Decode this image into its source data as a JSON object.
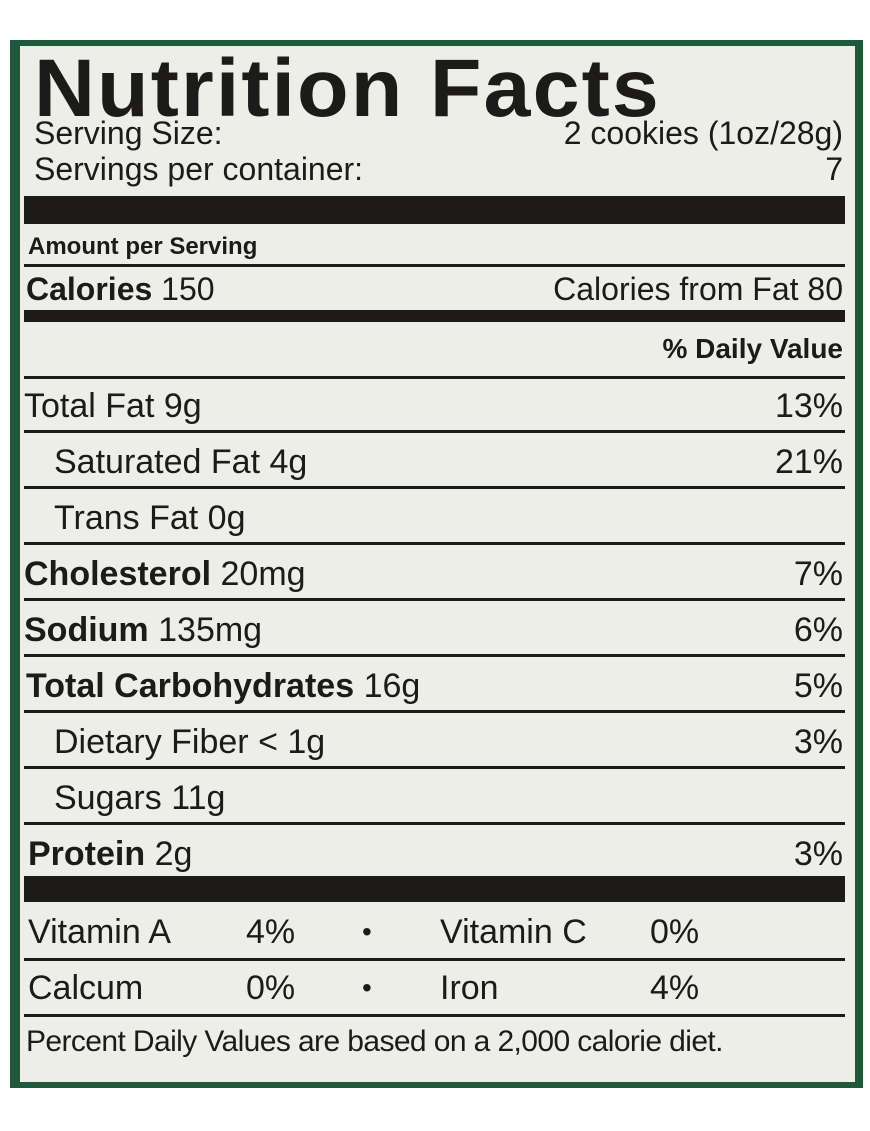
{
  "title": "Nutrition Facts",
  "serving_size_label": "Serving Size:",
  "serving_size_value": "2 cookies (1oz/28g)",
  "servings_label": "Servings per container:",
  "servings_value": "7",
  "amount_per_serving": "Amount per Serving",
  "calories": {
    "label": "Calories",
    "value": "150",
    "from_fat": "Calories from Fat 80"
  },
  "daily_value_header": "% Daily Value",
  "nutrients": {
    "total_fat": {
      "label": "Total Fat",
      "amount": "9g",
      "dv": "13%"
    },
    "saturated_fat": {
      "label": "Saturated Fat",
      "amount": "4g",
      "dv": "21%"
    },
    "trans_fat": {
      "label": "Trans Fat",
      "amount": "0g"
    },
    "cholesterol": {
      "label": "Cholesterol",
      "amount": "20mg",
      "dv": "7%"
    },
    "sodium": {
      "label": "Sodium",
      "amount": "135mg",
      "dv": "6%"
    },
    "total_carbs": {
      "label": "Total Carbohydrates",
      "amount": "16g",
      "dv": "5%"
    },
    "dietary_fiber": {
      "label": "Dietary Fiber",
      "amount": "< 1g",
      "dv": "3%"
    },
    "sugars": {
      "label": "Sugars",
      "amount": "11g"
    },
    "protein": {
      "label": "Protein",
      "amount": "2g",
      "dv": "3%"
    }
  },
  "vitamins": {
    "vitamin_a": {
      "label": "Vitamin A",
      "value": "4%"
    },
    "vitamin_c": {
      "label": "Vitamin C",
      "value": "0%"
    },
    "calcium": {
      "label": "Calcum",
      "value": "0%"
    },
    "iron": {
      "label": "Iron",
      "value": "4%"
    },
    "separator": "•"
  },
  "footnote": "Percent Daily Values are based on a 2,000 calorie diet.",
  "colors": {
    "ink": "#1c1b1a",
    "paper": "#edeee8",
    "package": "#1e5a3a"
  }
}
